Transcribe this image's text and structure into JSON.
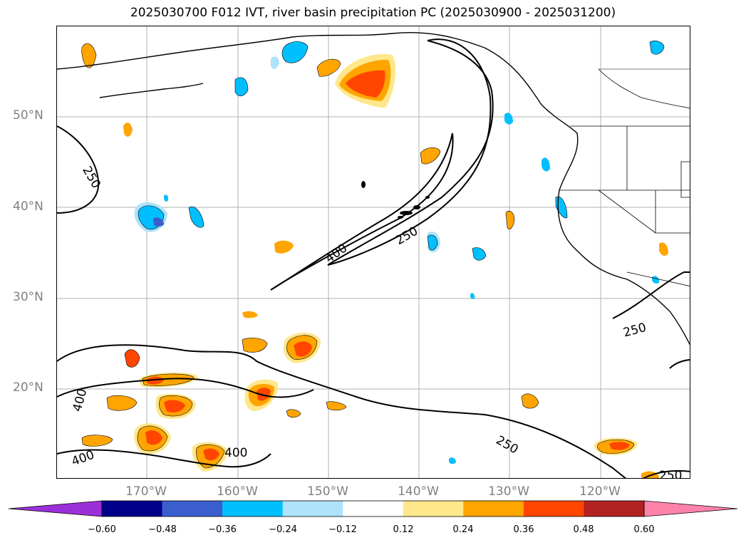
{
  "title": "2025030700 F012 IVT, river basin precipitation PC (2025030900 - 2025031200)",
  "lat_labels": [
    "50°N",
    "40°N",
    "30°N",
    "20°N"
  ],
  "lon_labels": [
    "170°W",
    "160°W",
    "150°W",
    "140°W",
    "130°W",
    "120°W"
  ],
  "contour_labels": [
    "250",
    "250",
    "400",
    "250",
    "400",
    "400",
    "250",
    "250",
    "400"
  ],
  "colorbar": {
    "ticks": [
      "−0.60",
      "−0.48",
      "−0.36",
      "−0.24",
      "−0.12",
      "0.12",
      "0.24",
      "0.36",
      "0.48",
      "0.60"
    ],
    "colors": [
      "#9b30d8",
      "#00008b",
      "#3a5fcd",
      "#00bfff",
      "#aee3fa",
      "#ffffff",
      "#ffe78b",
      "#ffa500",
      "#ff4500",
      "#b22222",
      "#ff82ab"
    ]
  }
}
